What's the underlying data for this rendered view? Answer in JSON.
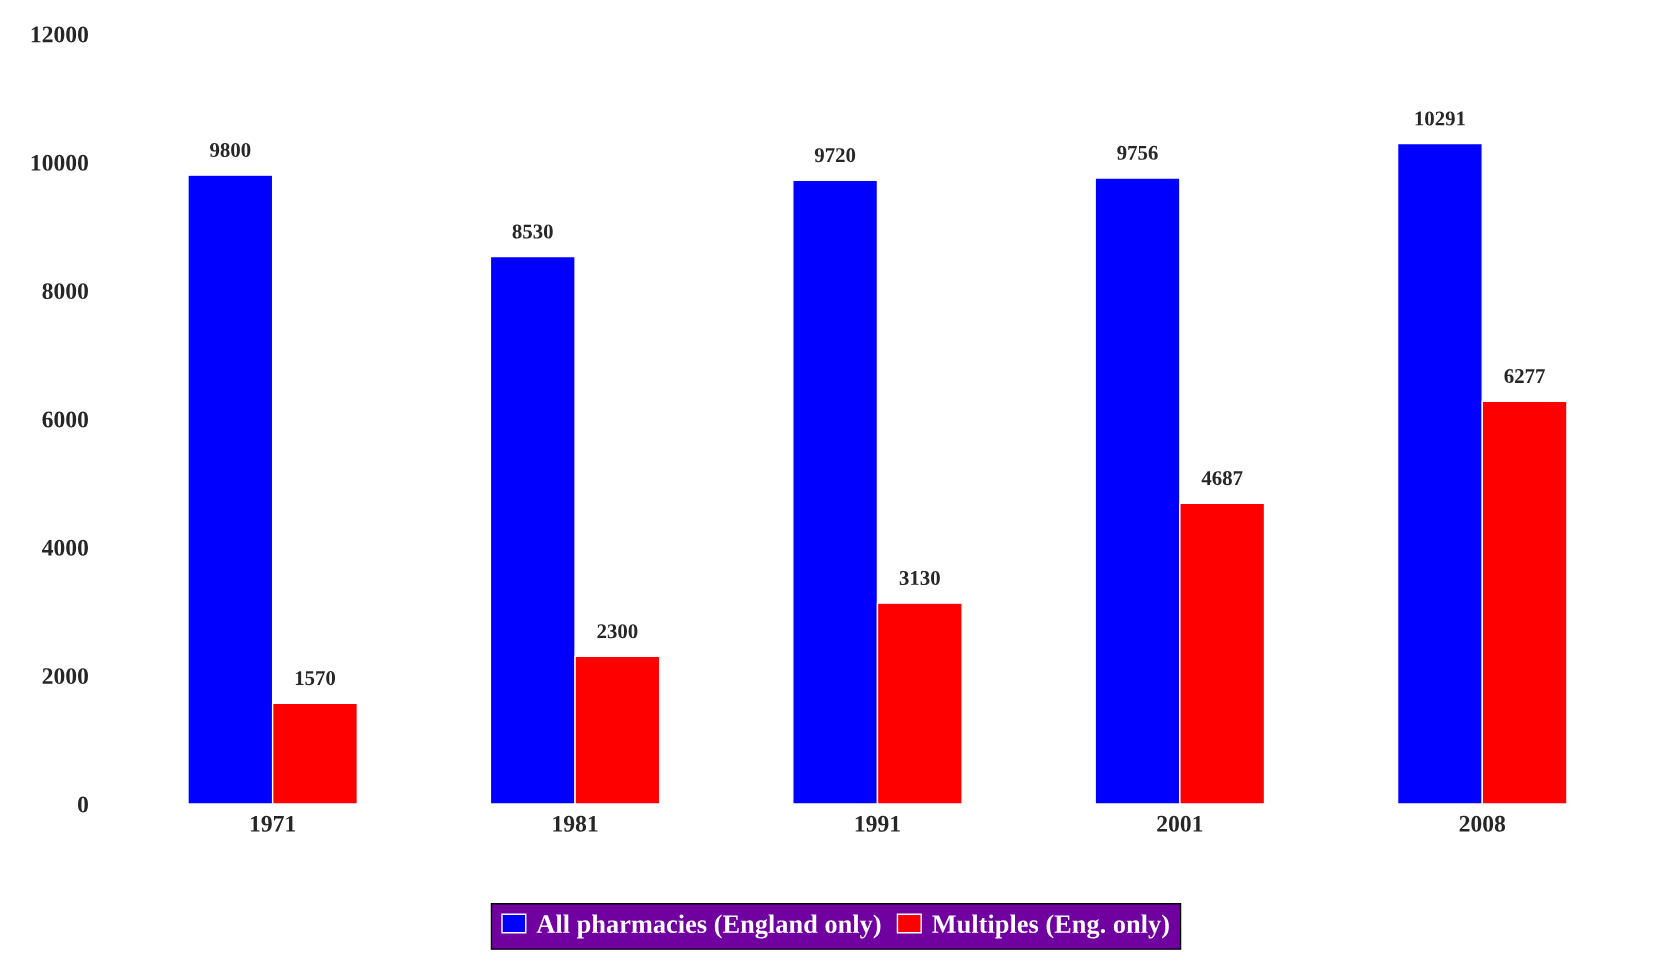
{
  "chart_data": {
    "type": "bar",
    "categories": [
      "1971",
      "1981",
      "1991",
      "2001",
      "2008"
    ],
    "series": [
      {
        "name": "All pharmacies (England only)",
        "color": "#0000ff",
        "values": [
          9800,
          8530,
          9720,
          9756,
          10291
        ]
      },
      {
        "name": "Multiples (Eng. only)",
        "color": "#ff0000",
        "values": [
          1570,
          2300,
          3130,
          4687,
          6277
        ]
      }
    ],
    "ylim": [
      0,
      12000
    ],
    "yticks": [
      0,
      2000,
      4000,
      6000,
      8000,
      10000,
      12000
    ],
    "grid": false,
    "legend": "bottom",
    "data_labels": true
  }
}
